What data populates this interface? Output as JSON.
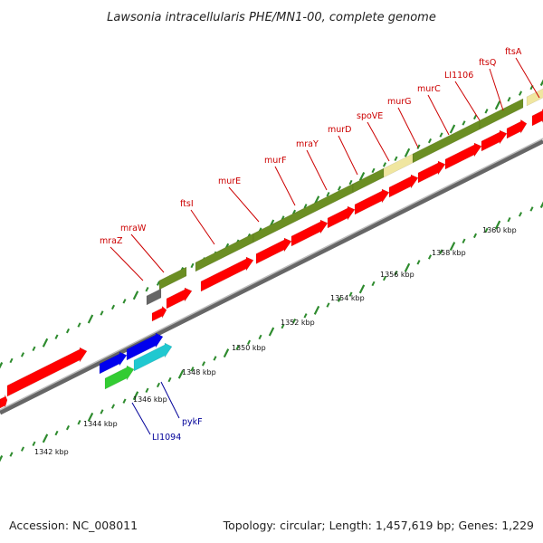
{
  "title": "Lawsonia intracellularis PHE/MN1-00, complete genome",
  "footer": {
    "accession": "Accession: NC_008011",
    "summary": "Topology: circular; Length: 1,457,619 bp; Genes: 1,229"
  },
  "kbp_labels": [
    "1342 kbp",
    "1344 kbp",
    "1346 kbp",
    "1348 kbp",
    "1350 kbp",
    "1352 kbp",
    "1354 kbp",
    "1356 kbp",
    "1358 kbp",
    "1360 kbp"
  ],
  "gene_labels_top": [
    "mraZ",
    "mraW",
    "ftsI",
    "murE",
    "murF",
    "mraY",
    "murD",
    "spoVE",
    "murG",
    "murC",
    "LI1106",
    "ftsQ",
    "ftsA"
  ],
  "gene_labels_bottom": [
    "LI1094",
    "pykF"
  ],
  "colors": {
    "cds": "#ff0000",
    "operon": "#6b8e23",
    "blue_gene": "#0000ee",
    "cyan_gene": "#20c8d0",
    "green_gene": "#33cc33",
    "pale_gene": "#f0e6a0",
    "gray_gene": "#666666",
    "tick": "#2e8b2e",
    "backbone": "#888888",
    "label_red": "#cc0000",
    "label_blue": "#000099"
  }
}
